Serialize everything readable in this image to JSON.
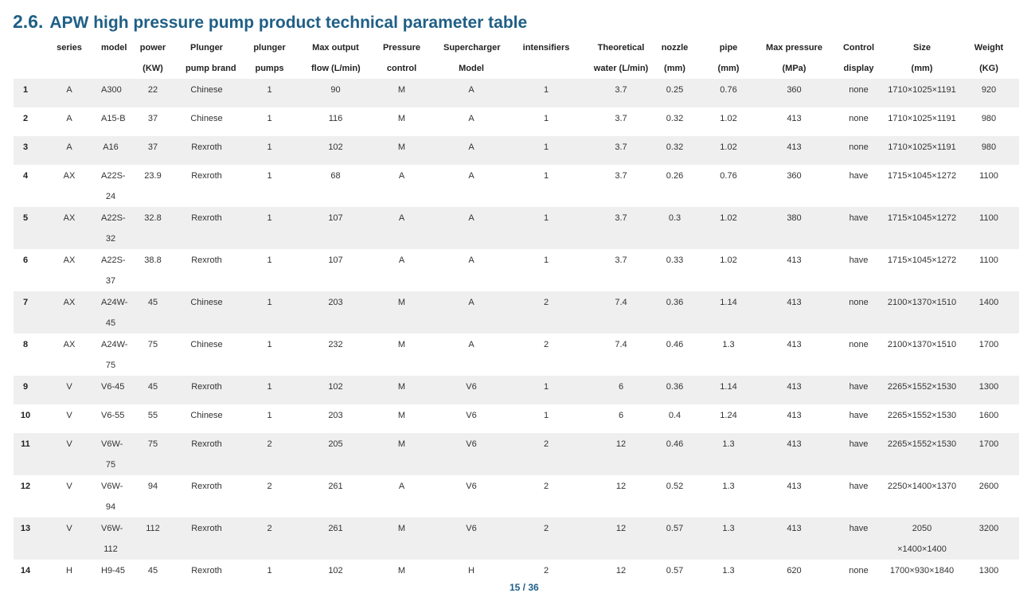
{
  "section": {
    "number": "2.6.",
    "title": "APW high pressure pump product technical parameter table"
  },
  "table": {
    "headers": [
      [
        "",
        ""
      ],
      [
        "series",
        ""
      ],
      [
        "model",
        ""
      ],
      [
        "power",
        "(KW)"
      ],
      [
        "Plunger",
        "pump brand"
      ],
      [
        "plunger",
        "pumps"
      ],
      [
        "Max output",
        "flow (L/min)"
      ],
      [
        "Pressure",
        "control"
      ],
      [
        "Supercharger",
        "Model"
      ],
      [
        "intensifiers",
        ""
      ],
      [
        "Theoretical",
        "water (L/min)"
      ],
      [
        "nozzle",
        "(mm)"
      ],
      [
        "pipe",
        "(mm)"
      ],
      [
        "Max pressure",
        "(MPa)"
      ],
      [
        "Control",
        "display"
      ],
      [
        "Size",
        "(mm)"
      ],
      [
        "Weight",
        "(KG)"
      ]
    ],
    "rows": [
      [
        [
          "1"
        ],
        [
          "A"
        ],
        [
          "A300"
        ],
        [
          "22"
        ],
        [
          "Chinese"
        ],
        [
          "1"
        ],
        [
          "90"
        ],
        [
          "M"
        ],
        [
          "A"
        ],
        [
          "1"
        ],
        [
          "3.7"
        ],
        [
          "0.25"
        ],
        [
          "0.76"
        ],
        [
          "360"
        ],
        [
          "none"
        ],
        [
          "1710×1025×1191"
        ],
        [
          "920"
        ]
      ],
      [
        [
          "2"
        ],
        [
          "A"
        ],
        [
          "A15-B"
        ],
        [
          "37"
        ],
        [
          "Chinese"
        ],
        [
          "1"
        ],
        [
          "116"
        ],
        [
          "M"
        ],
        [
          "A"
        ],
        [
          "1"
        ],
        [
          "3.7"
        ],
        [
          "0.32"
        ],
        [
          "1.02"
        ],
        [
          "413"
        ],
        [
          "none"
        ],
        [
          "1710×1025×1191"
        ],
        [
          "980"
        ]
      ],
      [
        [
          "3"
        ],
        [
          "A"
        ],
        [
          "A16"
        ],
        [
          "37"
        ],
        [
          "Rexroth"
        ],
        [
          "1"
        ],
        [
          "102"
        ],
        [
          "M"
        ],
        [
          "A"
        ],
        [
          "1"
        ],
        [
          "3.7"
        ],
        [
          "0.32"
        ],
        [
          "1.02"
        ],
        [
          "413"
        ],
        [
          "none"
        ],
        [
          "1710×1025×1191"
        ],
        [
          "980"
        ]
      ],
      [
        [
          "4"
        ],
        [
          "AX"
        ],
        [
          "A22S-",
          "24"
        ],
        [
          "23.9"
        ],
        [
          "Rexroth"
        ],
        [
          "1"
        ],
        [
          "68"
        ],
        [
          "A"
        ],
        [
          "A"
        ],
        [
          "1"
        ],
        [
          "3.7"
        ],
        [
          "0.26"
        ],
        [
          "0.76"
        ],
        [
          "360"
        ],
        [
          "have"
        ],
        [
          "1715×1045×1272"
        ],
        [
          "1100"
        ]
      ],
      [
        [
          "5"
        ],
        [
          "AX"
        ],
        [
          "A22S-",
          "32"
        ],
        [
          "32.8"
        ],
        [
          "Rexroth"
        ],
        [
          "1"
        ],
        [
          "107"
        ],
        [
          "A"
        ],
        [
          "A"
        ],
        [
          "1"
        ],
        [
          "3.7"
        ],
        [
          "0.3"
        ],
        [
          "1.02"
        ],
        [
          "380"
        ],
        [
          "have"
        ],
        [
          "1715×1045×1272"
        ],
        [
          "1100"
        ]
      ],
      [
        [
          "6"
        ],
        [
          "AX"
        ],
        [
          "A22S-",
          "37"
        ],
        [
          "38.8"
        ],
        [
          "Rexroth"
        ],
        [
          "1"
        ],
        [
          "107"
        ],
        [
          "A"
        ],
        [
          "A"
        ],
        [
          "1"
        ],
        [
          "3.7"
        ],
        [
          "0.33"
        ],
        [
          "1.02"
        ],
        [
          "413"
        ],
        [
          "have"
        ],
        [
          "1715×1045×1272"
        ],
        [
          "1100"
        ]
      ],
      [
        [
          "7"
        ],
        [
          "AX"
        ],
        [
          "A24W-",
          "45"
        ],
        [
          "45"
        ],
        [
          "Chinese"
        ],
        [
          "1"
        ],
        [
          "203"
        ],
        [
          "M"
        ],
        [
          "A"
        ],
        [
          "2"
        ],
        [
          "7.4"
        ],
        [
          "0.36"
        ],
        [
          "1.14"
        ],
        [
          "413"
        ],
        [
          "none"
        ],
        [
          "2100×1370×1510"
        ],
        [
          "1400"
        ]
      ],
      [
        [
          "8"
        ],
        [
          "AX"
        ],
        [
          "A24W-",
          "75"
        ],
        [
          "75"
        ],
        [
          "Chinese"
        ],
        [
          "1"
        ],
        [
          "232"
        ],
        [
          "M"
        ],
        [
          "A"
        ],
        [
          "2"
        ],
        [
          "7.4"
        ],
        [
          "0.46"
        ],
        [
          "1.3"
        ],
        [
          "413"
        ],
        [
          "none"
        ],
        [
          "2100×1370×1510"
        ],
        [
          "1700"
        ]
      ],
      [
        [
          "9"
        ],
        [
          "V"
        ],
        [
          "V6-45"
        ],
        [
          "45"
        ],
        [
          "Rexroth"
        ],
        [
          "1"
        ],
        [
          "102"
        ],
        [
          "M"
        ],
        [
          "V6"
        ],
        [
          "1"
        ],
        [
          "6"
        ],
        [
          "0.36"
        ],
        [
          "1.14"
        ],
        [
          "413"
        ],
        [
          "have"
        ],
        [
          "2265×1552×1530"
        ],
        [
          "1300"
        ]
      ],
      [
        [
          "10"
        ],
        [
          "V"
        ],
        [
          "V6-55"
        ],
        [
          "55"
        ],
        [
          "Chinese"
        ],
        [
          "1"
        ],
        [
          "203"
        ],
        [
          "M"
        ],
        [
          "V6"
        ],
        [
          "1"
        ],
        [
          "6"
        ],
        [
          "0.4"
        ],
        [
          "1.24"
        ],
        [
          "413"
        ],
        [
          "have"
        ],
        [
          "2265×1552×1530"
        ],
        [
          "1600"
        ]
      ],
      [
        [
          "11"
        ],
        [
          "V"
        ],
        [
          "V6W-",
          "75"
        ],
        [
          "75"
        ],
        [
          "Rexroth"
        ],
        [
          "2"
        ],
        [
          "205"
        ],
        [
          "M"
        ],
        [
          "V6"
        ],
        [
          "2"
        ],
        [
          "12"
        ],
        [
          "0.46"
        ],
        [
          "1.3"
        ],
        [
          "413"
        ],
        [
          "have"
        ],
        [
          "2265×1552×1530"
        ],
        [
          "1700"
        ]
      ],
      [
        [
          "12"
        ],
        [
          "V"
        ],
        [
          "V6W-",
          "94"
        ],
        [
          "94"
        ],
        [
          "Rexroth"
        ],
        [
          "2"
        ],
        [
          "261"
        ],
        [
          "A"
        ],
        [
          "V6"
        ],
        [
          "2"
        ],
        [
          "12"
        ],
        [
          "0.52"
        ],
        [
          "1.3"
        ],
        [
          "413"
        ],
        [
          "have"
        ],
        [
          "2250×1400×1370"
        ],
        [
          "2600"
        ]
      ],
      [
        [
          "13"
        ],
        [
          "V"
        ],
        [
          "V6W-",
          "112"
        ],
        [
          "112"
        ],
        [
          "Rexroth"
        ],
        [
          "2"
        ],
        [
          "261"
        ],
        [
          "M"
        ],
        [
          "V6"
        ],
        [
          "2"
        ],
        [
          "12"
        ],
        [
          "0.57"
        ],
        [
          "1.3"
        ],
        [
          "413"
        ],
        [
          "have"
        ],
        [
          "2050",
          "×1400×1400"
        ],
        [
          "3200"
        ]
      ],
      [
        [
          "14"
        ],
        [
          "H"
        ],
        [
          "H9-45"
        ],
        [
          "45"
        ],
        [
          "Rexroth"
        ],
        [
          "1"
        ],
        [
          "102"
        ],
        [
          "M"
        ],
        [
          "H"
        ],
        [
          "2"
        ],
        [
          "12"
        ],
        [
          "0.57"
        ],
        [
          "1.3"
        ],
        [
          "620"
        ],
        [
          "none"
        ],
        [
          "1700×930×1840"
        ],
        [
          "1300"
        ]
      ]
    ]
  },
  "footer": {
    "page": "15 / 36"
  }
}
